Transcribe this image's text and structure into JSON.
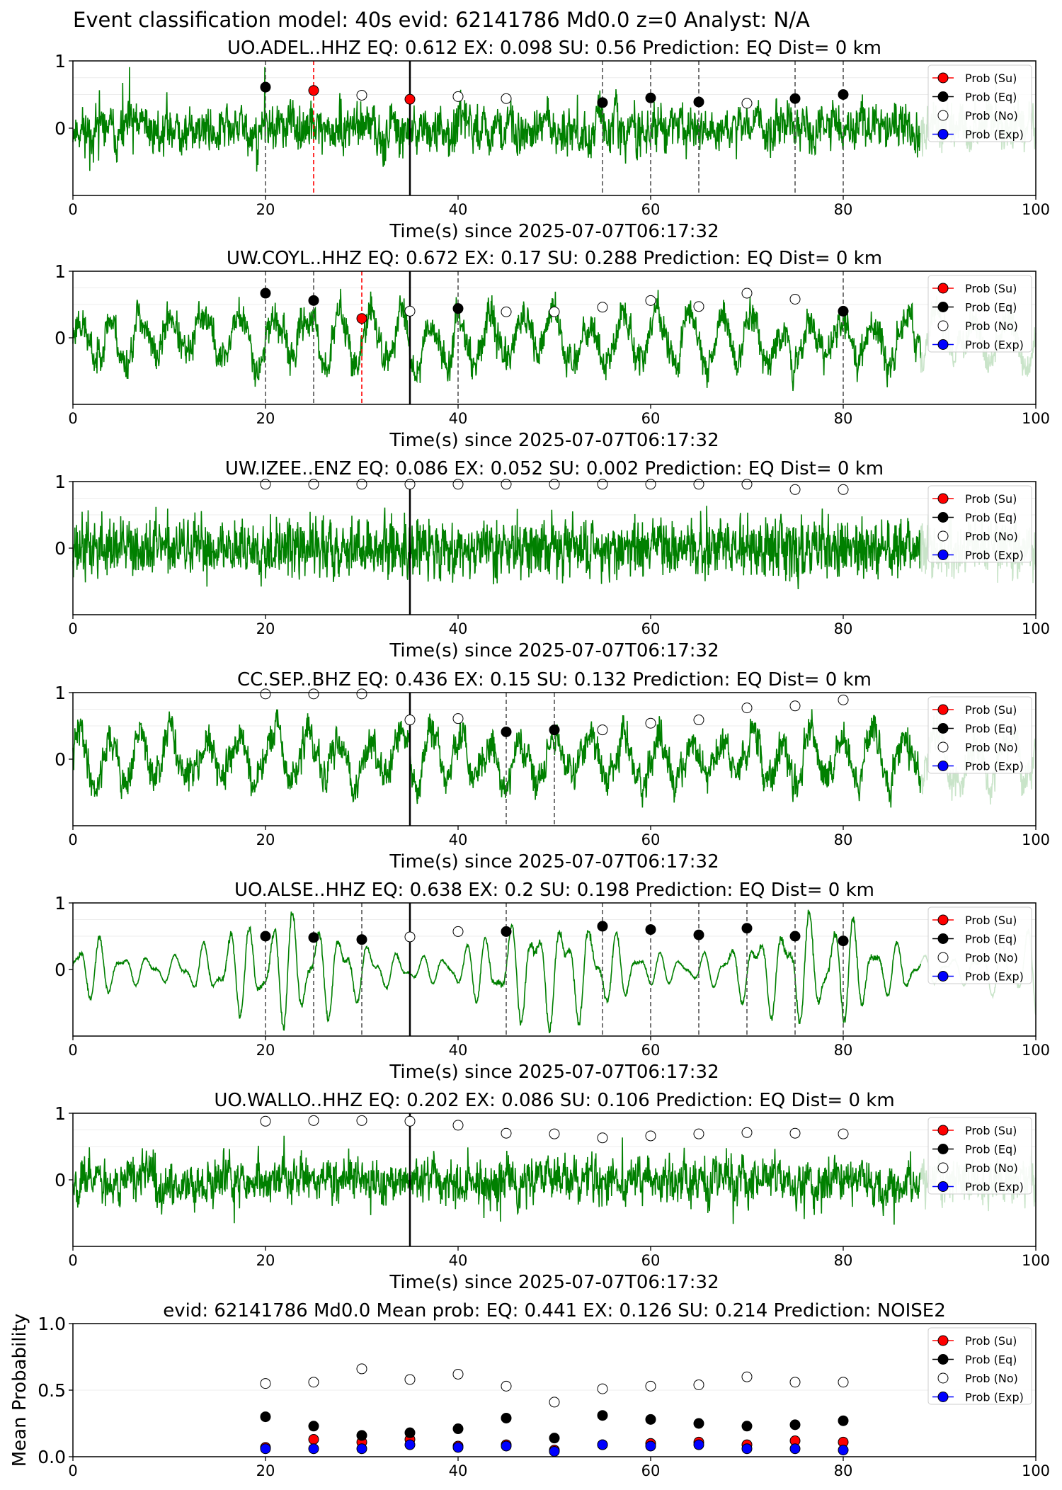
{
  "figure_title": "Event classification model: 40s evid: 62141786 Md0.0 z=0 Analyst: N/A",
  "legend_labels": [
    "Prob (Su)",
    "Prob (Eq)",
    "Prob (No)",
    "Prob (Exp)"
  ],
  "colors": {
    "waveform": "#008000",
    "waveform_tail": "#c9e4c9",
    "su": "#ff0000",
    "eq": "#000000",
    "no": "#ffffff",
    "exp": "#0000ff",
    "pick_eq": "#555555",
    "pick_su": "#ff0000"
  },
  "chart_data": [
    {
      "type": "line",
      "title": "UO.ADEL..HHZ   EQ: 0.612  EX: 0.098  SU: 0.56   Prediction: EQ    Dist= 0 km",
      "xlabel": "Time(s) since 2025-07-07T06:17:32",
      "xlim": [
        0,
        100
      ],
      "ylim": [
        -1,
        1
      ],
      "xticks": [
        "0",
        "20",
        "40",
        "60",
        "80",
        "100"
      ],
      "yticks": [
        "1",
        "0"
      ],
      "waveform_style": "noisy",
      "waveform_seed": 11,
      "origin_line_x": 35,
      "eq_pick_lines": [
        20,
        55,
        60,
        65,
        75,
        80
      ],
      "su_pick_lines": [
        25
      ],
      "series": [
        {
          "name": "Prob (Su)",
          "x": [
            25,
            35
          ],
          "y": [
            0.56,
            0.43
          ]
        },
        {
          "name": "Prob (Eq)",
          "x": [
            20,
            55,
            60,
            65,
            75,
            80
          ],
          "y": [
            0.61,
            0.38,
            0.45,
            0.39,
            0.44,
            0.5
          ]
        },
        {
          "name": "Prob (No)",
          "x": [
            30,
            40,
            45,
            70
          ],
          "y": [
            0.49,
            0.47,
            0.44,
            0.37
          ]
        },
        {
          "name": "Prob (Exp)",
          "x": [],
          "y": []
        }
      ]
    },
    {
      "type": "line",
      "title": "UW.COYL..HHZ   EQ: 0.672  EX: 0.17  SU: 0.288   Prediction: EQ    Dist= 0 km",
      "xlabel": "Time(s) since 2025-07-07T06:17:32",
      "xlim": [
        0,
        100
      ],
      "ylim": [
        -1,
        1
      ],
      "xticks": [
        "0",
        "20",
        "40",
        "60",
        "80",
        "100"
      ],
      "yticks": [
        "1",
        "0"
      ],
      "waveform_style": "mixed",
      "waveform_seed": 23,
      "origin_line_x": 35,
      "eq_pick_lines": [
        20,
        25,
        40,
        80
      ],
      "su_pick_lines": [
        30
      ],
      "series": [
        {
          "name": "Prob (Su)",
          "x": [
            30
          ],
          "y": [
            0.29
          ]
        },
        {
          "name": "Prob (Eq)",
          "x": [
            20,
            25,
            40,
            80
          ],
          "y": [
            0.67,
            0.56,
            0.44,
            0.4
          ]
        },
        {
          "name": "Prob (No)",
          "x": [
            35,
            45,
            50,
            55,
            60,
            65,
            70,
            75
          ],
          "y": [
            0.4,
            0.39,
            0.39,
            0.46,
            0.56,
            0.47,
            0.67,
            0.58
          ]
        },
        {
          "name": "Prob (Exp)",
          "x": [],
          "y": []
        }
      ]
    },
    {
      "type": "line",
      "title": "UW.IZEE..ENZ   EQ: 0.086  EX: 0.052  SU: 0.002   Prediction: EQ    Dist= 0 km",
      "xlabel": "Time(s) since 2025-07-07T06:17:32",
      "xlim": [
        0,
        100
      ],
      "ylim": [
        -1,
        1
      ],
      "xticks": [
        "0",
        "20",
        "40",
        "60",
        "80",
        "100"
      ],
      "yticks": [
        "1",
        "0"
      ],
      "waveform_style": "dense",
      "waveform_seed": 37,
      "origin_line_x": 35,
      "eq_pick_lines": [],
      "su_pick_lines": [],
      "series": [
        {
          "name": "Prob (Su)",
          "x": [],
          "y": []
        },
        {
          "name": "Prob (Eq)",
          "x": [],
          "y": []
        },
        {
          "name": "Prob (No)",
          "x": [
            20,
            25,
            30,
            35,
            40,
            45,
            50,
            55,
            60,
            65,
            70,
            75,
            80
          ],
          "y": [
            0.96,
            0.96,
            0.96,
            0.96,
            0.96,
            0.96,
            0.96,
            0.96,
            0.96,
            0.96,
            0.96,
            0.88,
            0.88
          ]
        },
        {
          "name": "Prob (Exp)",
          "x": [],
          "y": []
        }
      ]
    },
    {
      "type": "line",
      "title": "CC.SEP..BHZ   EQ: 0.436  EX: 0.15  SU: 0.132   Prediction: EQ    Dist= 0 km",
      "xlabel": "Time(s) since 2025-07-07T06:17:32",
      "xlim": [
        0,
        100
      ],
      "ylim": [
        -1,
        1
      ],
      "xticks": [
        "0",
        "20",
        "40",
        "60",
        "80",
        "100"
      ],
      "yticks": [
        "1",
        "0"
      ],
      "waveform_style": "mixed",
      "waveform_seed": 41,
      "origin_line_x": 35,
      "eq_pick_lines": [
        45,
        50
      ],
      "su_pick_lines": [],
      "series": [
        {
          "name": "Prob (Su)",
          "x": [],
          "y": []
        },
        {
          "name": "Prob (Eq)",
          "x": [
            45,
            50
          ],
          "y": [
            0.41,
            0.44
          ]
        },
        {
          "name": "Prob (No)",
          "x": [
            20,
            25,
            30,
            35,
            40,
            55,
            60,
            65,
            70,
            75,
            80
          ],
          "y": [
            0.98,
            0.98,
            0.98,
            0.59,
            0.61,
            0.44,
            0.54,
            0.59,
            0.77,
            0.8,
            0.89
          ]
        },
        {
          "name": "Prob (Exp)",
          "x": [],
          "y": []
        }
      ]
    },
    {
      "type": "line",
      "title": "UO.ALSE..HHZ   EQ: 0.638  EX: 0.2  SU: 0.198   Prediction: EQ    Dist= 0 km",
      "xlabel": "Time(s) since 2025-07-07T06:17:32",
      "xlim": [
        0,
        100
      ],
      "ylim": [
        -1,
        1
      ],
      "xticks": [
        "0",
        "20",
        "40",
        "60",
        "80",
        "100"
      ],
      "yticks": [
        "1",
        "0"
      ],
      "waveform_style": "smooth",
      "waveform_seed": 53,
      "origin_line_x": 35,
      "eq_pick_lines": [
        20,
        25,
        30,
        45,
        55,
        60,
        65,
        70,
        75,
        80
      ],
      "su_pick_lines": [],
      "series": [
        {
          "name": "Prob (Su)",
          "x": [],
          "y": []
        },
        {
          "name": "Prob (Eq)",
          "x": [
            20,
            25,
            30,
            45,
            55,
            60,
            65,
            70,
            75,
            80
          ],
          "y": [
            0.5,
            0.48,
            0.45,
            0.57,
            0.65,
            0.6,
            0.52,
            0.62,
            0.5,
            0.43
          ]
        },
        {
          "name": "Prob (No)",
          "x": [
            35,
            40
          ],
          "y": [
            0.49,
            0.57
          ]
        },
        {
          "name": "Prob (Exp)",
          "x": [],
          "y": []
        }
      ]
    },
    {
      "type": "line",
      "title": "UO.WALLO..HHZ   EQ: 0.202  EX: 0.086  SU: 0.106   Prediction: EQ    Dist= 0 km",
      "xlabel": "Time(s) since 2025-07-07T06:17:32",
      "xlim": [
        0,
        100
      ],
      "ylim": [
        -1,
        1
      ],
      "xticks": [
        "0",
        "20",
        "40",
        "60",
        "80",
        "100"
      ],
      "yticks": [
        "1",
        "0"
      ],
      "waveform_style": "noisy",
      "waveform_seed": 67,
      "origin_line_x": 35,
      "eq_pick_lines": [],
      "su_pick_lines": [],
      "series": [
        {
          "name": "Prob (Su)",
          "x": [],
          "y": []
        },
        {
          "name": "Prob (Eq)",
          "x": [],
          "y": []
        },
        {
          "name": "Prob (No)",
          "x": [
            20,
            25,
            30,
            35,
            40,
            45,
            50,
            55,
            60,
            65,
            70,
            75,
            80
          ],
          "y": [
            0.88,
            0.89,
            0.89,
            0.88,
            0.82,
            0.7,
            0.69,
            0.63,
            0.66,
            0.69,
            0.71,
            0.7,
            0.69
          ]
        },
        {
          "name": "Prob (Exp)",
          "x": [],
          "y": []
        }
      ]
    },
    {
      "type": "scatter",
      "title": "evid: 62141786  Md0.0    Mean prob:    EQ: 0.441   EX: 0.126   SU: 0.214    Prediction: NOISE2",
      "xlabel": "",
      "ylabel": "Mean Probability",
      "xlim": [
        0,
        100
      ],
      "ylim": [
        0,
        1
      ],
      "xticks": [
        "0",
        "20",
        "40",
        "60",
        "80",
        "100"
      ],
      "yticks": [
        "0.0",
        "0.5",
        "1.0"
      ],
      "x": [
        20,
        25,
        30,
        35,
        40,
        45,
        50,
        55,
        60,
        65,
        70,
        75,
        80
      ],
      "series": [
        {
          "name": "Prob (Su)",
          "values": [
            0.07,
            0.13,
            0.11,
            0.13,
            0.08,
            0.09,
            0.05,
            0.09,
            0.1,
            0.11,
            0.09,
            0.12,
            0.11
          ]
        },
        {
          "name": "Prob (Eq)",
          "values": [
            0.3,
            0.23,
            0.16,
            0.18,
            0.21,
            0.29,
            0.14,
            0.31,
            0.28,
            0.25,
            0.23,
            0.24,
            0.27
          ]
        },
        {
          "name": "Prob (No)",
          "values": [
            0.55,
            0.56,
            0.66,
            0.58,
            0.62,
            0.53,
            0.41,
            0.51,
            0.53,
            0.54,
            0.6,
            0.56,
            0.56
          ]
        },
        {
          "name": "Prob (Exp)",
          "values": [
            0.06,
            0.06,
            0.06,
            0.09,
            0.07,
            0.08,
            0.04,
            0.09,
            0.08,
            0.09,
            0.06,
            0.06,
            0.05
          ]
        }
      ]
    }
  ]
}
